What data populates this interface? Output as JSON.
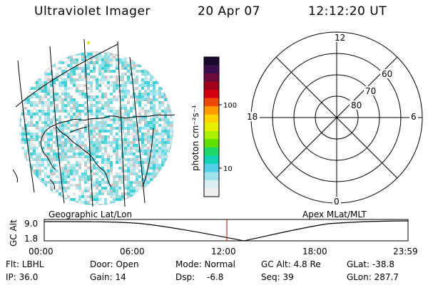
{
  "header": {
    "instrument": "Ultraviolet Imager",
    "date": "20 Apr 07",
    "time": "12:12:20 UT"
  },
  "colorbar": {
    "unit_label": "photon cm⁻²s⁻¹",
    "ticks": [
      "100",
      "10"
    ],
    "colors": [
      "#1a0a2e",
      "#3b0f4d",
      "#6a0a3a",
      "#a0001a",
      "#d40012",
      "#f04a00",
      "#ff9a00",
      "#ffd200",
      "#e8f000",
      "#a6f000",
      "#5ee000",
      "#1ed86a",
      "#12d2b8",
      "#4fd0e6",
      "#9fe2ee",
      "#d8eef2",
      "#f0f0f0"
    ]
  },
  "polar": {
    "mlt_labels": {
      "top": "12",
      "left": "18",
      "right": "6",
      "bottom": "0"
    },
    "lat_labels": [
      "60",
      "70",
      "80"
    ]
  },
  "timeline": {
    "left_title": "Geographic Lat/Lon",
    "right_title": "Apex MLat/MLT",
    "axis_label": "GC Alt",
    "y_ticks": [
      "9.0",
      "1.8"
    ],
    "x_ticks": [
      "00:00",
      "06:00",
      "12:00",
      "18:00",
      "23:59"
    ]
  },
  "status": {
    "filter": "Flt: LBHL",
    "door": "Door: Open",
    "mode": "Mode: Normal",
    "gc_alt": "GC Alt: 4.8 Re",
    "glat": "GLat: -38.8",
    "ip": "IP: 36.0",
    "gain": "Gain: 14",
    "dsp_label": "Dsp:",
    "dsp_value": "-6.8",
    "seq": "Seq: 39",
    "glon": "GLon: 287.7"
  }
}
